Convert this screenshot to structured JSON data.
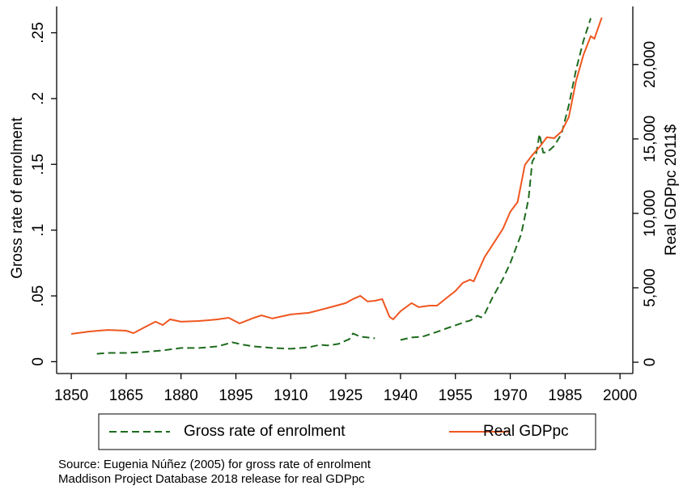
{
  "chart_data": {
    "type": "line",
    "xlabel": null,
    "ylabel": "Gross rate of enrolment",
    "y2label": "Real GDPpc 2011$",
    "xlim": [
      1846,
      2003.5
    ],
    "xticks": [
      1850,
      1865,
      1880,
      1895,
      1910,
      1925,
      1940,
      1955,
      1970,
      1985,
      2000
    ],
    "ylim": [
      -0.009,
      0.27
    ],
    "yticks": [
      {
        "value": 0,
        "label": "0"
      },
      {
        "value": 0.05,
        "label": ".05"
      },
      {
        "value": 0.1,
        "label": ".1"
      },
      {
        "value": 0.15,
        "label": ".15"
      },
      {
        "value": 0.2,
        "label": ".2"
      },
      {
        "value": 0.25,
        "label": ".25"
      }
    ],
    "y2lim": [
      -760,
      23900
    ],
    "y2ticks": [
      0,
      {
        "value": 5000,
        "label": "5,000"
      },
      {
        "value": 10000,
        "label": "10,000"
      },
      {
        "value": 15000,
        "label": "15,000"
      },
      {
        "value": 20000,
        "label": "20,000"
      }
    ],
    "grid": false,
    "legend": "bottom",
    "series": [
      {
        "name": "Gross rate of enrolment",
        "color": "#1e6b1e",
        "dash": true,
        "x": [
          1857,
          1860,
          1865,
          1870,
          1875,
          1880,
          1885,
          1890,
          1894,
          1897,
          1900,
          1905,
          1910,
          1915,
          1918,
          1920,
          1923,
          1926,
          1927,
          1929,
          1933,
          1935,
          1940,
          1943,
          1946,
          1950,
          1953,
          1955,
          1958,
          1959,
          1960,
          1961,
          1962,
          1963,
          1965,
          1968,
          1970,
          1973,
          1975,
          1976,
          1977,
          1978,
          1979,
          1980,
          1982,
          1984,
          1986,
          1988,
          1990,
          1992
        ],
        "values": [
          0.006,
          0.0067,
          0.0067,
          0.0074,
          0.0086,
          0.0104,
          0.0104,
          0.0116,
          0.0147,
          0.0129,
          0.0116,
          0.0104,
          0.0098,
          0.011,
          0.0129,
          0.0123,
          0.0135,
          0.0172,
          0.0214,
          0.019,
          0.0178,
          null,
          0.0165,
          0.0184,
          0.019,
          0.0227,
          0.0257,
          0.0276,
          0.0306,
          0.0312,
          0.033,
          0.035,
          0.0337,
          0.0362,
          0.048,
          0.063,
          0.075,
          0.097,
          0.124,
          0.152,
          0.157,
          0.173,
          0.159,
          0.159,
          0.164,
          0.173,
          0.195,
          0.222,
          0.244,
          0.261
        ]
      },
      {
        "name": "Real GDPpc",
        "color": "#f0561f",
        "dash": false,
        "axis": "y2",
        "x": [
          1850,
          1855,
          1860,
          1865,
          1867,
          1870,
          1873,
          1875,
          1877,
          1880,
          1885,
          1890,
          1893,
          1896,
          1900,
          1902,
          1905,
          1910,
          1915,
          1920,
          1925,
          1927,
          1929,
          1931,
          1933,
          1935,
          1937,
          1938,
          1940,
          1943,
          1945,
          1948,
          1950,
          1953,
          1955,
          1957,
          1959,
          1960,
          1963,
          1966,
          1968,
          1970,
          1972,
          1974,
          1976,
          1978,
          1980,
          1982,
          1984,
          1986,
          1988,
          1990,
          1992,
          1993,
          1995
        ],
        "values": [
          1900,
          2065,
          2170,
          2120,
          1950,
          2340,
          2720,
          2500,
          2880,
          2720,
          2770,
          2880,
          2990,
          2610,
          2990,
          3150,
          2940,
          3210,
          3320,
          3640,
          3970,
          4240,
          4460,
          4080,
          4130,
          4240,
          3040,
          2880,
          3420,
          3970,
          3700,
          3800,
          3800,
          4400,
          4780,
          5330,
          5540,
          5430,
          7070,
          8210,
          8970,
          10110,
          10760,
          13260,
          13910,
          14460,
          15110,
          15050,
          15490,
          16470,
          18910,
          20650,
          21900,
          21740,
          23150
        ]
      }
    ],
    "source": [
      "Source: Eugenia Núñez (2005) for gross rate of enrolment",
      "Maddison Project Database 2018 release for real GDPpc"
    ]
  }
}
